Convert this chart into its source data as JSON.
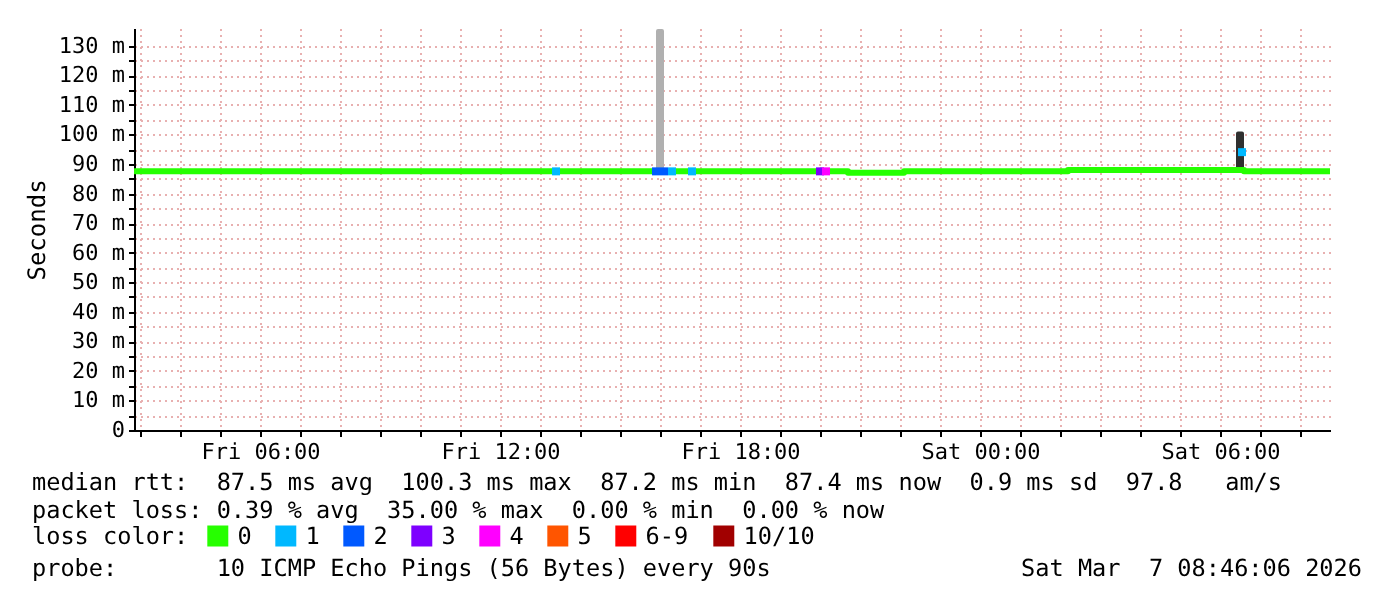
{
  "chart_data": {
    "type": "line",
    "ylabel": "Seconds",
    "legend_title": "loss color:",
    "legend": "bottom",
    "grid": true,
    "xlim": [
      "2026-03-06T02:51",
      "2026-03-07T08:45"
    ],
    "ylim": [
      0,
      136
    ],
    "xticks": [
      {
        "value": "2026-03-06T03:00",
        "label": null
      },
      {
        "value": "2026-03-06T04:00",
        "label": null
      },
      {
        "value": "2026-03-06T05:00",
        "label": null
      },
      {
        "value": "2026-03-06T06:00",
        "label": "Fri 06:00"
      },
      {
        "value": "2026-03-06T07:00",
        "label": null
      },
      {
        "value": "2026-03-06T08:00",
        "label": null
      },
      {
        "value": "2026-03-06T09:00",
        "label": null
      },
      {
        "value": "2026-03-06T10:00",
        "label": null
      },
      {
        "value": "2026-03-06T11:00",
        "label": null
      },
      {
        "value": "2026-03-06T12:00",
        "label": "Fri 12:00"
      },
      {
        "value": "2026-03-06T13:00",
        "label": null
      },
      {
        "value": "2026-03-06T14:00",
        "label": null
      },
      {
        "value": "2026-03-06T15:00",
        "label": null
      },
      {
        "value": "2026-03-06T16:00",
        "label": null
      },
      {
        "value": "2026-03-06T17:00",
        "label": null
      },
      {
        "value": "2026-03-06T18:00",
        "label": "Fri 18:00"
      },
      {
        "value": "2026-03-06T19:00",
        "label": null
      },
      {
        "value": "2026-03-06T20:00",
        "label": null
      },
      {
        "value": "2026-03-06T21:00",
        "label": null
      },
      {
        "value": "2026-03-06T22:00",
        "label": null
      },
      {
        "value": "2026-03-06T23:00",
        "label": null
      },
      {
        "value": "2026-03-07T00:00",
        "label": "Sat 00:00"
      },
      {
        "value": "2026-03-07T01:00",
        "label": null
      },
      {
        "value": "2026-03-07T02:00",
        "label": null
      },
      {
        "value": "2026-03-07T03:00",
        "label": null
      },
      {
        "value": "2026-03-07T04:00",
        "label": null
      },
      {
        "value": "2026-03-07T05:00",
        "label": null
      },
      {
        "value": "2026-03-07T06:00",
        "label": "Sat 06:00"
      },
      {
        "value": "2026-03-07T07:00",
        "label": null
      },
      {
        "value": "2026-03-07T08:00",
        "label": null
      }
    ],
    "yticks": [
      0,
      {
        "value": 5,
        "label": null
      },
      {
        "value": 10,
        "label": "10 m"
      },
      {
        "value": 15,
        "label": null
      },
      {
        "value": 20,
        "label": "20 m"
      },
      {
        "value": 25,
        "label": null
      },
      {
        "value": 30,
        "label": "30 m"
      },
      {
        "value": 35,
        "label": null
      },
      {
        "value": 40,
        "label": "40 m"
      },
      {
        "value": 45,
        "label": null
      },
      {
        "value": 50,
        "label": "50 m"
      },
      {
        "value": 55,
        "label": null
      },
      {
        "value": 60,
        "label": "60 m"
      },
      {
        "value": 65,
        "label": null
      },
      {
        "value": 70,
        "label": "70 m"
      },
      {
        "value": 75,
        "label": null
      },
      {
        "value": 80,
        "label": "80 m"
      },
      {
        "value": 85,
        "label": null
      },
      {
        "value": 90,
        "label": "90 m"
      },
      {
        "value": 95,
        "label": null
      },
      {
        "value": 100,
        "label": "100 m"
      },
      {
        "value": 105,
        "label": null
      },
      {
        "value": 110,
        "label": "110 m"
      },
      {
        "value": 115,
        "label": null
      },
      {
        "value": 120,
        "label": "120 m"
      },
      {
        "value": 125,
        "label": null
      },
      {
        "value": 130,
        "label": "130 m"
      }
    ],
    "series": [
      {
        "type": "line",
        "color": "#b0b0b0",
        "x": [
          "2026-03-06T15:57",
          "2026-03-06T15:57",
          "2026-03-06T16:03",
          "2026-03-06T16:03"
        ],
        "values": [
          87.5,
          135,
          135,
          87.5
        ]
      },
      {
        "type": "line",
        "color": "#303030",
        "x": [
          "2026-03-07T06:27",
          "2026-03-07T06:27",
          "2026-03-07T06:33",
          "2026-03-07T06:33"
        ],
        "values": [
          87.5,
          100.3,
          100.3,
          87.5
        ]
      },
      {
        "name": "0",
        "color": "#26ff00",
        "x": [
          "2026-03-06T02:51",
          "2026-03-06T20:42",
          "2026-03-06T20:42",
          "2026-03-06T22:06",
          "2026-03-06T22:06",
          "2026-03-07T02:12",
          "2026-03-07T02:12",
          "2026-03-07T06:36",
          "2026-03-07T06:36",
          "2026-03-07T08:45"
        ],
        "values": [
          87.5,
          87.5,
          87,
          87,
          87.5,
          87.5,
          88,
          88,
          87.5,
          87.5
        ]
      },
      {
        "name": "1",
        "type": "scatter",
        "color": "#00b8ff",
        "x": [
          "2026-03-06T13:24",
          "2026-03-06T16:18",
          "2026-03-06T16:48",
          "2026-03-07T06:33"
        ],
        "values": [
          87.5,
          87.5,
          87.5,
          94
        ]
      },
      {
        "name": "2",
        "type": "scatter",
        "color": "#0059ff",
        "x": [
          "2026-03-06T15:54",
          "2026-03-06T16:06"
        ],
        "values": [
          87.5,
          87.5
        ]
      },
      {
        "name": "3",
        "type": "scatter",
        "color": "#7e00ff",
        "x": [
          "2026-03-06T20:00"
        ],
        "values": [
          87.5
        ]
      },
      {
        "name": "4",
        "type": "scatter",
        "color": "#ff00ff",
        "x": [
          "2026-03-06T20:09"
        ],
        "values": [
          87.5
        ]
      },
      {
        "name": "5",
        "type": "scatter",
        "color": "#ff5500"
      },
      {
        "name": "6-9",
        "type": "scatter",
        "color": "#ff0000"
      },
      {
        "name": "10/10",
        "type": "scatter",
        "color": "#a10000"
      }
    ],
    "annotations": [
      "median rtt:  87.5 ms avg  100.3 ms max  87.2 ms min  87.4 ms now  0.9 ms sd  97.8   am/s",
      "packet loss: 0.39 % avg  35.00 % max  0.00 % min  0.00 % now",
      "probe:       10 ICMP Echo Pings (56 Bytes) every 90s",
      "Sat Mar  7 08:46:06 2026"
    ]
  }
}
